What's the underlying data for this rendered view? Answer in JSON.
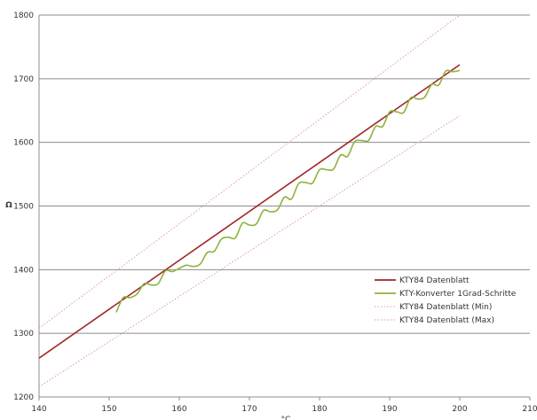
{
  "chart_data": {
    "type": "line",
    "title": "",
    "xlabel": "°C",
    "ylabel": "Ω",
    "xlim": [
      140,
      210
    ],
    "ylim": [
      1200,
      1800
    ],
    "xticks": [
      140,
      150,
      160,
      170,
      180,
      190,
      200,
      210
    ],
    "yticks": [
      1200,
      1300,
      1400,
      1500,
      1600,
      1700,
      1800
    ],
    "x_tick_labels": [
      "140",
      "150",
      "160",
      "170",
      "180",
      "190",
      "200",
      "210"
    ],
    "y_tick_labels": [
      "1200",
      "1300",
      "1400",
      "1500",
      "1600",
      "1700",
      "1800"
    ],
    "grid": "horizontal",
    "legend_position": "right",
    "series": [
      {
        "name": "KTY84 Datenblatt",
        "color": "#a0272a",
        "style": "solid",
        "points": [
          [
            140,
            1261
          ],
          [
            200,
            1722
          ]
        ]
      },
      {
        "name": "KTY-Konverter 1Grad-Schritte",
        "color": "#8db33c",
        "style": "solid",
        "points": [
          [
            151,
            1333
          ],
          [
            152,
            1356
          ],
          [
            153,
            1356
          ],
          [
            154,
            1362
          ],
          [
            155,
            1378
          ],
          [
            156,
            1376
          ],
          [
            157,
            1378
          ],
          [
            158,
            1398
          ],
          [
            159,
            1397
          ],
          [
            160,
            1402
          ],
          [
            161,
            1407
          ],
          [
            162,
            1405
          ],
          [
            163,
            1409
          ],
          [
            164,
            1427
          ],
          [
            165,
            1429
          ],
          [
            166,
            1448
          ],
          [
            167,
            1451
          ],
          [
            168,
            1450
          ],
          [
            169,
            1473
          ],
          [
            170,
            1470
          ],
          [
            171,
            1472
          ],
          [
            172,
            1493
          ],
          [
            173,
            1491
          ],
          [
            174,
            1494
          ],
          [
            175,
            1514
          ],
          [
            176,
            1511
          ],
          [
            177,
            1535
          ],
          [
            178,
            1537
          ],
          [
            179,
            1536
          ],
          [
            180,
            1557
          ],
          [
            181,
            1557
          ],
          [
            182,
            1558
          ],
          [
            183,
            1580
          ],
          [
            184,
            1578
          ],
          [
            185,
            1601
          ],
          [
            186,
            1603
          ],
          [
            187,
            1603
          ],
          [
            188,
            1625
          ],
          [
            189,
            1625
          ],
          [
            190,
            1648
          ],
          [
            191,
            1648
          ],
          [
            192,
            1647
          ],
          [
            193,
            1670
          ],
          [
            194,
            1668
          ],
          [
            195,
            1671
          ],
          [
            196,
            1691
          ],
          [
            197,
            1690
          ],
          [
            198,
            1712
          ],
          [
            199,
            1711
          ],
          [
            200,
            1713
          ]
        ]
      },
      {
        "name": "KTY84 Datenblatt (Min)",
        "color": "#e39a9a",
        "style": "dotted",
        "points": [
          [
            140,
            1216
          ],
          [
            200,
            1642
          ]
        ]
      },
      {
        "name": "KTY84 Datenblatt (Max)",
        "color": "#e39a9a",
        "style": "dotted",
        "points": [
          [
            140,
            1308
          ],
          [
            200,
            1800
          ]
        ]
      }
    ]
  }
}
